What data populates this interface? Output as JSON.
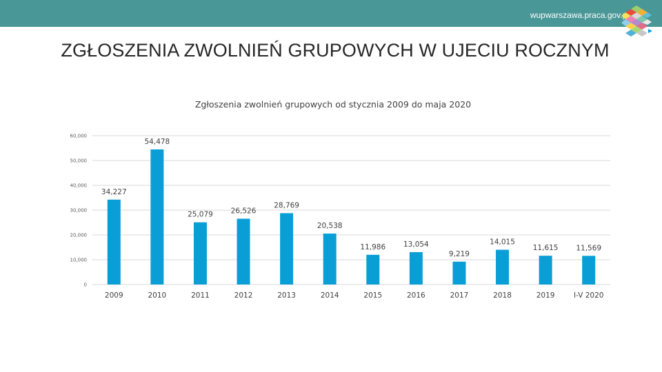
{
  "header": {
    "site": "wupwarszawa.praca.gov.pl",
    "bar_color": "#4a9797"
  },
  "slide": {
    "title": "ZGŁOSZENIA ZWOLNIEŃ GRUPOWYCH W UJECIU ROCZNYM"
  },
  "chart_data": {
    "type": "bar",
    "title": "Zgłoszenia zwolnień grupowych od stycznia 2009 do maja 2020",
    "xlabel": "",
    "ylabel": "",
    "categories": [
      "2009",
      "2010",
      "2011",
      "2012",
      "2013",
      "2014",
      "2015",
      "2016",
      "2017",
      "2018",
      "2019",
      "I-V 2020"
    ],
    "values": [
      34227,
      54478,
      25079,
      26526,
      28769,
      20538,
      11986,
      13054,
      9219,
      14015,
      11615,
      11569
    ],
    "value_labels": [
      "34,227",
      "54,478",
      "25,079",
      "26,526",
      "28,769",
      "20,538",
      "11,986",
      "13,054",
      "9,219",
      "14,015",
      "11,615",
      "11,569"
    ],
    "ylim": [
      0,
      60000
    ],
    "yticks": [
      0,
      10000,
      20000,
      30000,
      40000,
      50000,
      60000
    ],
    "ytick_labels": [
      "0",
      "10,000",
      "20,000",
      "30,000",
      "40,000",
      "50,000",
      "60,000"
    ],
    "grid": true,
    "legend": "none",
    "bar_color": "#0a9ed7",
    "grid_color": "#d9d9d9"
  }
}
